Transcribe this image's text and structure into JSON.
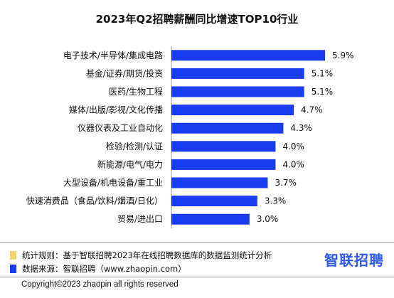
{
  "chart_data": {
    "type": "bar",
    "orientation": "horizontal",
    "title": "2023年Q2招聘薪酬同比增速TOP10行业",
    "categories": [
      "电子技术/半导体/集成电路",
      "基金/证券/期货/投资",
      "医药/生物工程",
      "媒体/出版/影视/文化传播",
      "仪器仪表及工业自动化",
      "检验/检测/认证",
      "新能源/电气/电力",
      "大型设备/机电设备/重工业",
      "快速消费品（食品/饮料/烟酒/日化）",
      "贸易/进出口"
    ],
    "values": [
      5.9,
      5.1,
      5.1,
      4.7,
      4.3,
      4.0,
      4.0,
      3.7,
      3.3,
      3.0
    ],
    "value_labels": [
      "5.9%",
      "5.1%",
      "5.1%",
      "4.7%",
      "4.3%",
      "4.0%",
      "4.0%",
      "3.7%",
      "3.3%",
      "3.0%"
    ],
    "bar_color": "#1a3cf0",
    "xlim": [
      0,
      5.9
    ],
    "grid": false,
    "xlabel": "",
    "ylabel": ""
  },
  "notes": {
    "rule_color": "#f5d36a",
    "rule_text": "统计规则：基于智联招聘2023年在线招聘数据库的数据监测统计分析",
    "source_color": "#1a3cf0",
    "source_text": "数据来源：智联招聘（www.zhaopin.com）"
  },
  "logo_text": "智联招聘",
  "copyright": "Copyright©2023 zhaopin all rights reserved"
}
